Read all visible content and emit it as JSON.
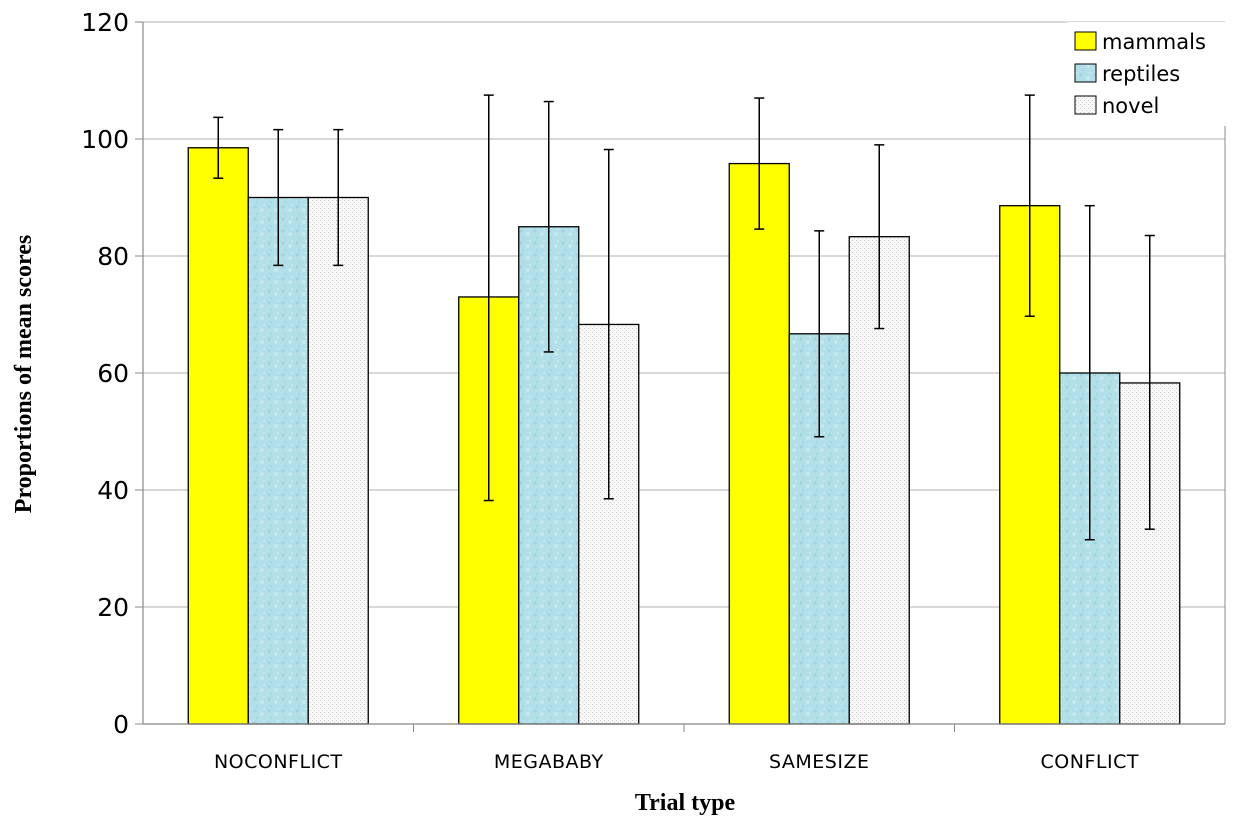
{
  "chart_data": {
    "type": "bar",
    "title": "",
    "xlabel": "Trial type",
    "ylabel": "Proportions of mean scores",
    "ylim": [
      0,
      120
    ],
    "yticks": [
      0,
      20,
      40,
      60,
      80,
      100,
      120
    ],
    "grid": true,
    "legend_position": "top-right",
    "categories": [
      "NOCONFLICT",
      "MEGABABY",
      "SAMESIZE",
      "CONFLICT"
    ],
    "series": [
      {
        "name": "mammals",
        "color": "#ffff00",
        "pattern": "solid",
        "values": [
          98.5,
          73,
          95.8,
          88.6
        ],
        "error_low": [
          93.3,
          38.2,
          84.6,
          69.7
        ],
        "error_high": [
          103.7,
          107.5,
          107.0,
          107.5
        ]
      },
      {
        "name": "reptiles",
        "color": "#b3e0e8",
        "pattern": "water",
        "values": [
          90,
          85,
          66.7,
          60
        ],
        "error_low": [
          78.4,
          63.6,
          49.1,
          31.5
        ],
        "error_high": [
          101.6,
          106.4,
          84.3,
          88.6
        ]
      },
      {
        "name": "novel",
        "color": "#f7f7f7",
        "pattern": "dots",
        "values": [
          90,
          68.3,
          83.3,
          58.3
        ],
        "error_low": [
          78.4,
          38.5,
          67.6,
          33.3
        ],
        "error_high": [
          101.6,
          98.2,
          99.0,
          83.5
        ]
      }
    ]
  }
}
